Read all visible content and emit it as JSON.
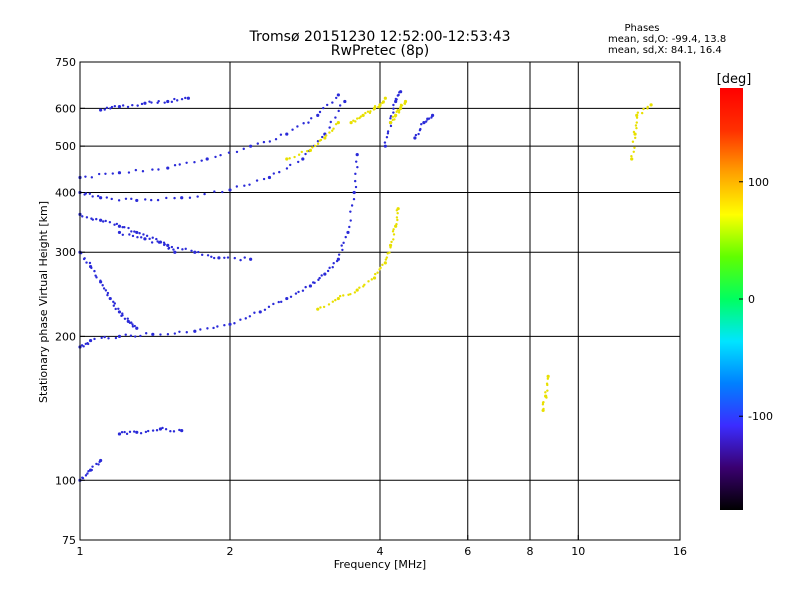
{
  "header": {
    "title": "Tromsø 20151230 12:52:00-12:53:43",
    "subtitle": "RwPretec (8p)"
  },
  "phase_stats": {
    "heading": "Phases",
    "line_o": "mean, sd,O:  -99.4, 13.8",
    "line_x": "mean, sd,X:  84.1, 16.4"
  },
  "chart_data": {
    "type": "scatter",
    "title": "Tromsø 20151230 12:52:00-12:53:43",
    "subtitle": "RwPretec (8p)",
    "xlabel": "Frequency [MHz]",
    "ylabel": "Stationary phase Virtual Height [km]",
    "x_scale": "log2",
    "y_scale": "log",
    "xlim": [
      1,
      16
    ],
    "ylim": [
      75,
      750
    ],
    "x_ticks": [
      1,
      2,
      4,
      6,
      8,
      10,
      16
    ],
    "x_tick_labels": [
      "1",
      "2",
      "4",
      "6",
      "8",
      "10",
      "16"
    ],
    "x_gridlines": [
      2,
      4,
      6,
      8,
      10
    ],
    "y_ticks": [
      75,
      100,
      200,
      300,
      400,
      500,
      600,
      750
    ],
    "y_tick_labels": [
      "75",
      "100",
      "200",
      "300",
      "400",
      "500",
      "600",
      "750"
    ],
    "y_gridlines": [
      100,
      200,
      300,
      400,
      500,
      600
    ],
    "grid": true,
    "colorbar": {
      "label": "[deg]",
      "range": [
        -180,
        180
      ],
      "ticks": [
        100,
        0,
        -100
      ],
      "tick_labels": [
        "100",
        "0",
        "-100"
      ],
      "colors": [
        "#000000",
        "#3a0070",
        "#3b2cff",
        "#0080ff",
        "#00e5ff",
        "#00ff60",
        "#60ff00",
        "#ffff00",
        "#ffa000",
        "#ff3000",
        "#ff0000"
      ]
    },
    "series": [
      {
        "name": "O",
        "phase_mean": -99.4,
        "phase_sd": 13.8,
        "color": "#2a2ad8",
        "traces": [
          {
            "f": [
              1.0,
              1.05,
              1.2,
              1.4,
              1.7,
              2.0,
              2.3,
              2.6,
              2.9,
              3.1,
              3.3,
              3.45,
              3.55,
              3.6
            ],
            "h": [
              190,
              196,
              200,
              202,
              205,
              212,
              225,
              240,
              255,
              270,
              290,
              330,
              400,
              480
            ]
          },
          {
            "f": [
              1.0,
              1.1,
              1.3,
              1.6,
              2.0,
              2.4,
              2.8,
              3.1,
              3.4
            ],
            "h": [
              400,
              390,
              385,
              390,
              405,
              430,
              470,
              530,
              620
            ]
          },
          {
            "f": [
              1.0,
              1.2,
              1.5,
              1.8,
              2.2,
              2.6,
              3.0,
              3.3
            ],
            "h": [
              430,
              440,
              450,
              470,
              500,
              530,
              580,
              640
            ]
          },
          {
            "f": [
              1.1,
              1.2,
              1.35,
              1.5,
              1.65
            ],
            "h": [
              595,
              605,
              615,
              620,
              630
            ]
          },
          {
            "f": [
              1.0,
              1.05,
              1.1,
              1.15,
              1.2,
              1.25,
              1.3
            ],
            "h": [
              300,
              280,
              260,
              240,
              225,
              215,
              208
            ]
          },
          {
            "f": [
              1.0,
              1.1,
              1.2,
              1.3,
              1.45,
              1.55
            ],
            "h": [
              360,
              350,
              340,
              330,
              315,
              300
            ]
          },
          {
            "f": [
              1.2,
              1.35,
              1.5,
              1.7,
              1.9,
              2.2
            ],
            "h": [
              330,
              320,
              310,
              300,
              292,
              290
            ]
          },
          {
            "f": [
              1.2,
              1.3,
              1.45,
              1.6
            ],
            "h": [
              125,
              126,
              128,
              127
            ]
          },
          {
            "f": [
              1.0,
              1.05,
              1.1
            ],
            "h": [
              100,
              105,
              110
            ]
          },
          {
            "f": [
              4.1,
              4.2,
              4.3,
              4.4
            ],
            "h": [
              500,
              560,
              620,
              650
            ]
          },
          {
            "f": [
              4.7,
              4.9,
              5.1
            ],
            "h": [
              520,
              560,
              580
            ]
          }
        ]
      },
      {
        "name": "X",
        "phase_mean": 84.1,
        "phase_sd": 16.4,
        "color": "#e8e000",
        "traces": [
          {
            "f": [
              3.0,
              3.3,
              3.6,
              3.9,
              4.1,
              4.2,
              4.3,
              4.35
            ],
            "h": [
              228,
              240,
              250,
              265,
              285,
              310,
              340,
              370
            ]
          },
          {
            "f": [
              2.6,
              2.9,
              3.1,
              3.3
            ],
            "h": [
              470,
              490,
              520,
              560
            ]
          },
          {
            "f": [
              3.5,
              3.7,
              3.9,
              4.0,
              4.1
            ],
            "h": [
              560,
              580,
              600,
              610,
              630
            ]
          },
          {
            "f": [
              4.2,
              4.3,
              4.4,
              4.5
            ],
            "h": [
              560,
              580,
              600,
              620
            ]
          },
          {
            "f": [
              8.5,
              8.6,
              8.7
            ],
            "h": [
              140,
              150,
              165
            ]
          },
          {
            "f": [
              12.8,
              13.0,
              13.1,
              14.0
            ],
            "h": [
              470,
              530,
              580,
              610
            ]
          }
        ]
      }
    ]
  }
}
